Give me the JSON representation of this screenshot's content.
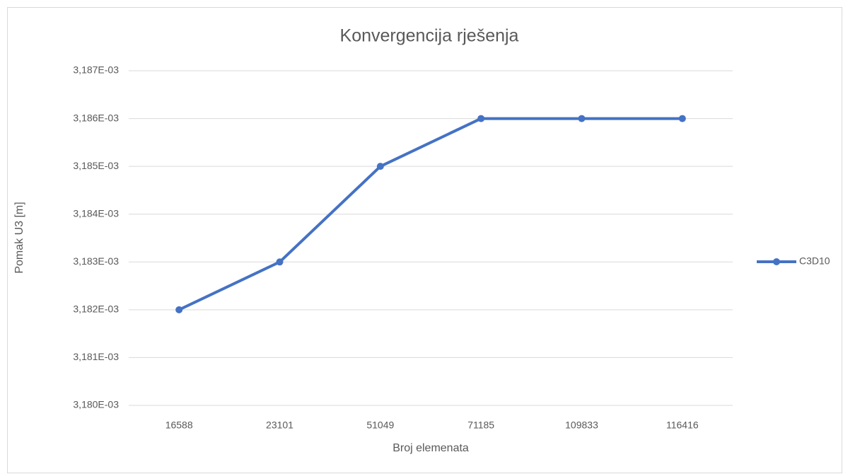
{
  "chart_data": {
    "type": "line",
    "title": "Konvergencija rješenja",
    "x_label": "Broj elemenata",
    "y_label": "Pomak U3 [m]",
    "categories": [
      "16588",
      "23101",
      "51049",
      "71185",
      "109833",
      "116416"
    ],
    "series": [
      {
        "name": "C3D10",
        "color": "#4472c4",
        "values": [
          0.003182,
          0.003183,
          0.003185,
          0.003186,
          0.003186,
          0.003186
        ]
      }
    ],
    "ylim": [
      0.00318,
      0.003187
    ],
    "yticks": [
      {
        "value": 0.00318,
        "label": "3,180E-03"
      },
      {
        "value": 0.003181,
        "label": "3,181E-03"
      },
      {
        "value": 0.003182,
        "label": "3,182E-03"
      },
      {
        "value": 0.003183,
        "label": "3,183E-03"
      },
      {
        "value": 0.003184,
        "label": "3,184E-03"
      },
      {
        "value": 0.003185,
        "label": "3,185E-03"
      },
      {
        "value": 0.003186,
        "label": "3,186E-03"
      },
      {
        "value": 0.003187,
        "label": "3,187E-03"
      }
    ],
    "grid": true,
    "legend": "right"
  }
}
